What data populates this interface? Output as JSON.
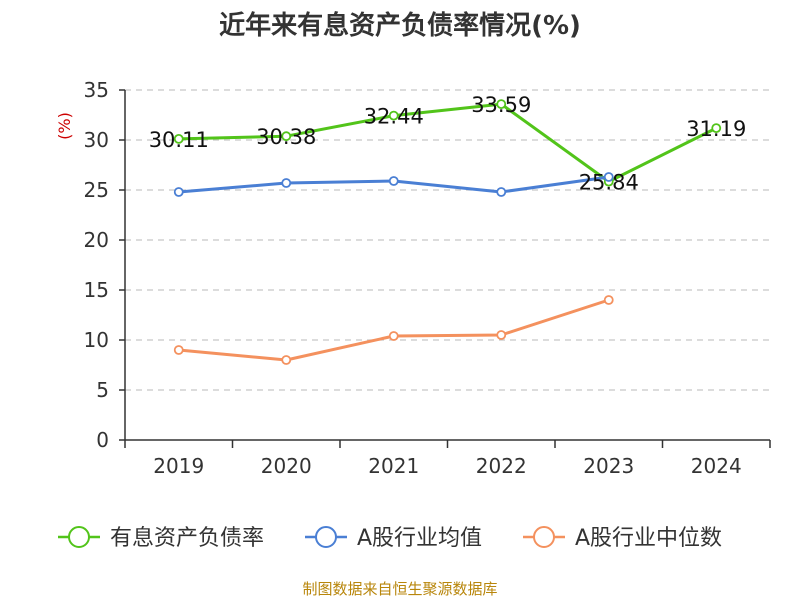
{
  "chart_data": {
    "type": "line",
    "title": "近年来有息资产负债率情况(%)",
    "ylabel": "(%)",
    "xlabel": "",
    "categories": [
      "2019",
      "2020",
      "2021",
      "2022",
      "2023",
      "2024"
    ],
    "ylim": [
      0,
      35
    ],
    "yticks": [
      "0",
      "5",
      "10",
      "15",
      "20",
      "25",
      "30",
      "35"
    ],
    "grid": "horizontal dashed",
    "legend_position": "bottom",
    "series": [
      {
        "name": "有息资产负债率",
        "color": "#52c41a",
        "values": [
          30.11,
          30.38,
          32.44,
          33.59,
          25.84,
          31.19
        ],
        "labels": [
          "30.11",
          "30.38",
          "32.44",
          "33.59",
          "25.84",
          "31.19"
        ]
      },
      {
        "name": "A股行业均值",
        "color": "#4a7fd4",
        "values": [
          24.8,
          25.7,
          25.9,
          24.8,
          26.3,
          null
        ]
      },
      {
        "name": "A股行业中位数",
        "color": "#f4915e",
        "values": [
          9.0,
          8.0,
          10.4,
          10.5,
          14.0,
          null
        ]
      }
    ]
  },
  "source": "制图数据来自恒生聚源数据库"
}
